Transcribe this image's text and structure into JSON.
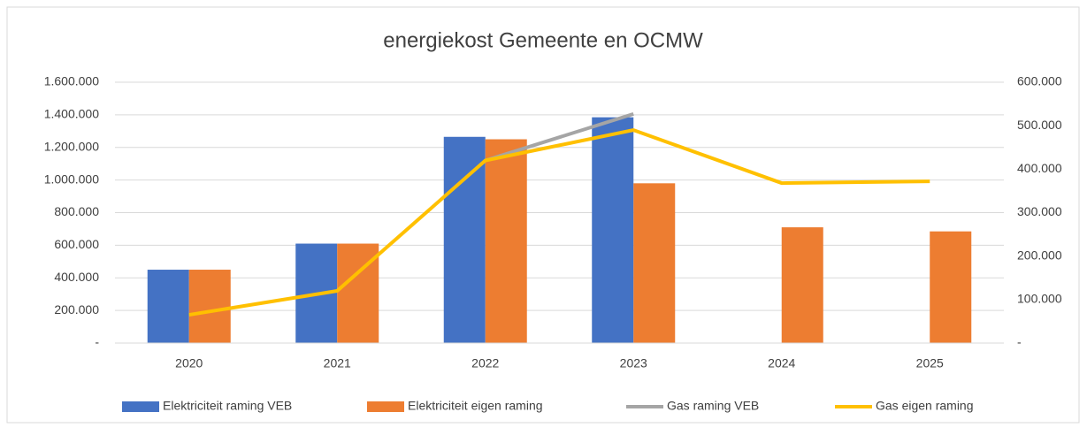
{
  "chart_data": {
    "type": "bar_line",
    "title": "energiekost Gemeente en OCMW",
    "categories": [
      "2020",
      "2021",
      "2022",
      "2023",
      "2024",
      "2025"
    ],
    "series": [
      {
        "name": "Elektriciteit raming VEB",
        "color": "#4472c4",
        "type": "bar",
        "values": [
          450000,
          610000,
          1265000,
          1385000,
          null,
          null
        ]
      },
      {
        "name": "Elektriciteit eigen raming",
        "color": "#ed7d31",
        "type": "bar",
        "values": [
          450000,
          610000,
          1250000,
          980000,
          710000,
          685000
        ]
      },
      {
        "name": "Gas raming VEB",
        "color": "#a5a5a5",
        "type": "line",
        "axis": "y2",
        "values": [
          null,
          null,
          420000,
          527000,
          null,
          null
        ]
      },
      {
        "name": "Gas eigen raming",
        "color": "#ffc000",
        "type": "line",
        "axis": "y2",
        "values": [
          65000,
          120000,
          420000,
          490000,
          368000,
          372000
        ]
      }
    ],
    "ylim": [
      0,
      1600000
    ],
    "yticks": [
      {
        "value": 0,
        "label": "-"
      },
      {
        "value": 200000,
        "label": "200.000"
      },
      {
        "value": 400000,
        "label": "400.000"
      },
      {
        "value": 600000,
        "label": "600.000"
      },
      {
        "value": 800000,
        "label": "800.000"
      },
      {
        "value": 1000000,
        "label": "1.000.000"
      },
      {
        "value": 1200000,
        "label": "1.200.000"
      },
      {
        "value": 1400000,
        "label": "1.400.000"
      },
      {
        "value": 1600000,
        "label": "1.600.000"
      }
    ],
    "y2lim": [
      0,
      600000
    ],
    "y2ticks": [
      {
        "value": 0,
        "label": "-"
      },
      {
        "value": 100000,
        "label": "100.000"
      },
      {
        "value": 200000,
        "label": "200.000"
      },
      {
        "value": 300000,
        "label": "300.000"
      },
      {
        "value": 400000,
        "label": "400.000"
      },
      {
        "value": 500000,
        "label": "500.000"
      },
      {
        "value": 600000,
        "label": "600.000"
      }
    ],
    "grid": true,
    "legend": "bottom"
  }
}
